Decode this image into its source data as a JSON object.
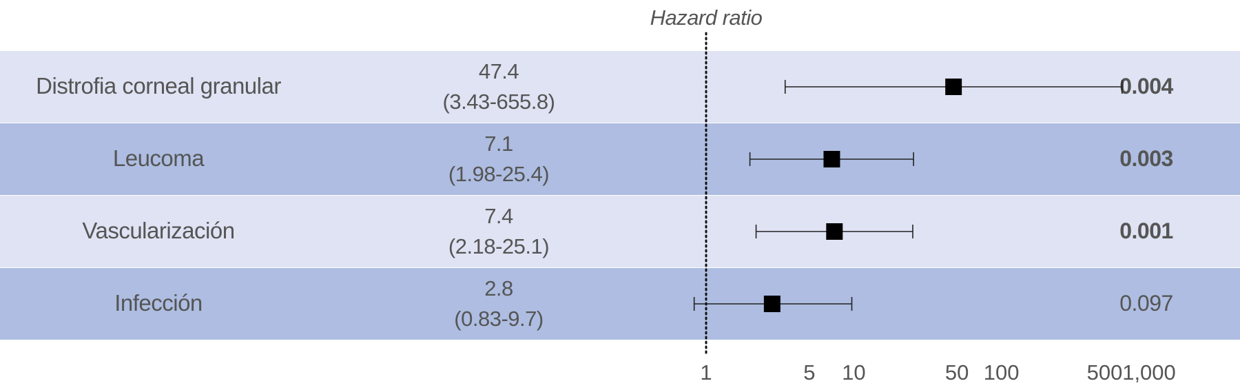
{
  "chart_data": {
    "type": "forest",
    "title": "Hazard ratio",
    "scale": "log",
    "xlim": [
      1,
      1000
    ],
    "reference_line": 1,
    "x_ticks": [
      1,
      5,
      10,
      50,
      100,
      500,
      1000
    ],
    "x_tick_labels": [
      "1",
      "5",
      "10",
      "50",
      "100",
      "500",
      "1,000"
    ],
    "rows": [
      {
        "label": "Distrofia corneal granular",
        "hr": 47.4,
        "ci_low": 3.43,
        "ci_high": 655.8,
        "hr_text": "47.4",
        "ci_text": "(3.43-655.8)",
        "p": "0.004",
        "significant": true
      },
      {
        "label": "Leucoma",
        "hr": 7.1,
        "ci_low": 1.98,
        "ci_high": 25.4,
        "hr_text": "7.1",
        "ci_text": "(1.98-25.4)",
        "p": "0.003",
        "significant": true
      },
      {
        "label": "Vascularización",
        "hr": 7.4,
        "ci_low": 2.18,
        "ci_high": 25.1,
        "hr_text": "7.4",
        "ci_text": "(2.18-25.1)",
        "p": "0.001",
        "significant": true
      },
      {
        "label": "Infección",
        "hr": 2.8,
        "ci_low": 0.83,
        "ci_high": 9.7,
        "hr_text": "2.8",
        "ci_text": "(0.83-9.7)",
        "p": "0.097",
        "significant": false
      }
    ]
  }
}
